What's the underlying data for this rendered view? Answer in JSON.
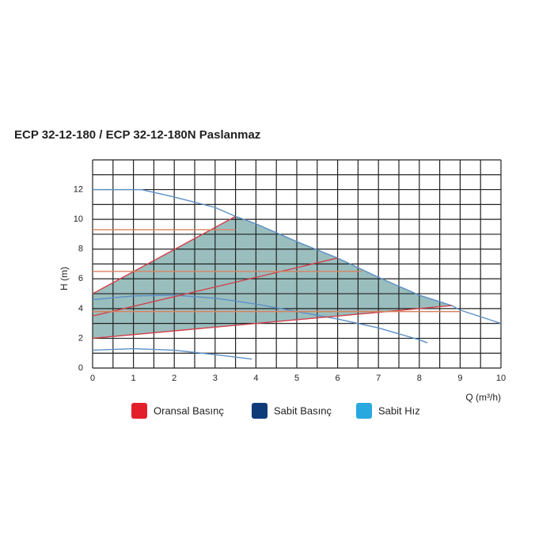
{
  "chart_data": {
    "type": "line",
    "title": "ECP 32-12-180 / ECP 32-12-180N Paslanmaz",
    "x_label": "Q (m³/h)",
    "y_label": "H (m)",
    "xlim": [
      0,
      10
    ],
    "ylim": [
      0,
      14
    ],
    "xticks": [
      0,
      1,
      2,
      3,
      4,
      5,
      6,
      7,
      8,
      9,
      10
    ],
    "yticks": [
      0,
      2,
      4,
      6,
      8,
      10,
      12
    ],
    "grid": true,
    "grid_x": [
      0.5,
      1.5,
      2.5,
      3.5,
      4.5,
      5.5,
      6.5,
      7.5,
      8.5,
      9.5
    ],
    "grid_y": [
      1,
      3,
      5,
      7,
      9,
      11,
      13,
      14
    ],
    "legend": [
      {
        "name": "Oransal Basınç",
        "color": "#e3202a"
      },
      {
        "name": "Sabit Basınç",
        "color": "#0d3b7a"
      },
      {
        "name": "Sabit Hız",
        "color": "#29a8e0"
      }
    ],
    "series": [
      {
        "color": "#5b8fc7",
        "x": [
          0,
          1.2,
          2,
          3,
          3.5,
          4,
          5,
          6,
          7,
          8,
          8.8,
          9,
          10
        ],
        "y": [
          12,
          12,
          11.5,
          10.8,
          10.2,
          9.7,
          8.5,
          7.4,
          6.1,
          4.9,
          4.2,
          3.9,
          3.0
        ]
      },
      {
        "color": "#5b8fc7",
        "x": [
          0,
          1,
          2,
          3,
          4,
          5,
          6,
          7,
          8,
          8.2
        ],
        "y": [
          4.6,
          4.85,
          4.9,
          4.7,
          4.3,
          3.8,
          3.3,
          2.7,
          1.9,
          1.7
        ]
      },
      {
        "color": "#5b8fc7",
        "x": [
          0,
          1,
          2,
          3,
          3.9
        ],
        "y": [
          1.2,
          1.3,
          1.2,
          0.9,
          0.6
        ]
      },
      {
        "color": "#d2404a",
        "x": [
          0,
          3.5
        ],
        "y": [
          5,
          10.2
        ]
      },
      {
        "color": "#d2404a",
        "x": [
          0,
          6
        ],
        "y": [
          3.5,
          7.4
        ]
      },
      {
        "color": "#d2404a",
        "x": [
          0,
          8.8
        ],
        "y": [
          2,
          4.2
        ]
      },
      {
        "color": "#d9825e",
        "x": [
          0,
          3.5
        ],
        "y": [
          9.3,
          9.3
        ]
      },
      {
        "color": "#d9825e",
        "x": [
          0,
          6.6
        ],
        "y": [
          6.5,
          6.5
        ]
      },
      {
        "color": "#d9825e",
        "x": [
          0,
          9
        ],
        "y": [
          3.8,
          3.8
        ]
      }
    ]
  }
}
